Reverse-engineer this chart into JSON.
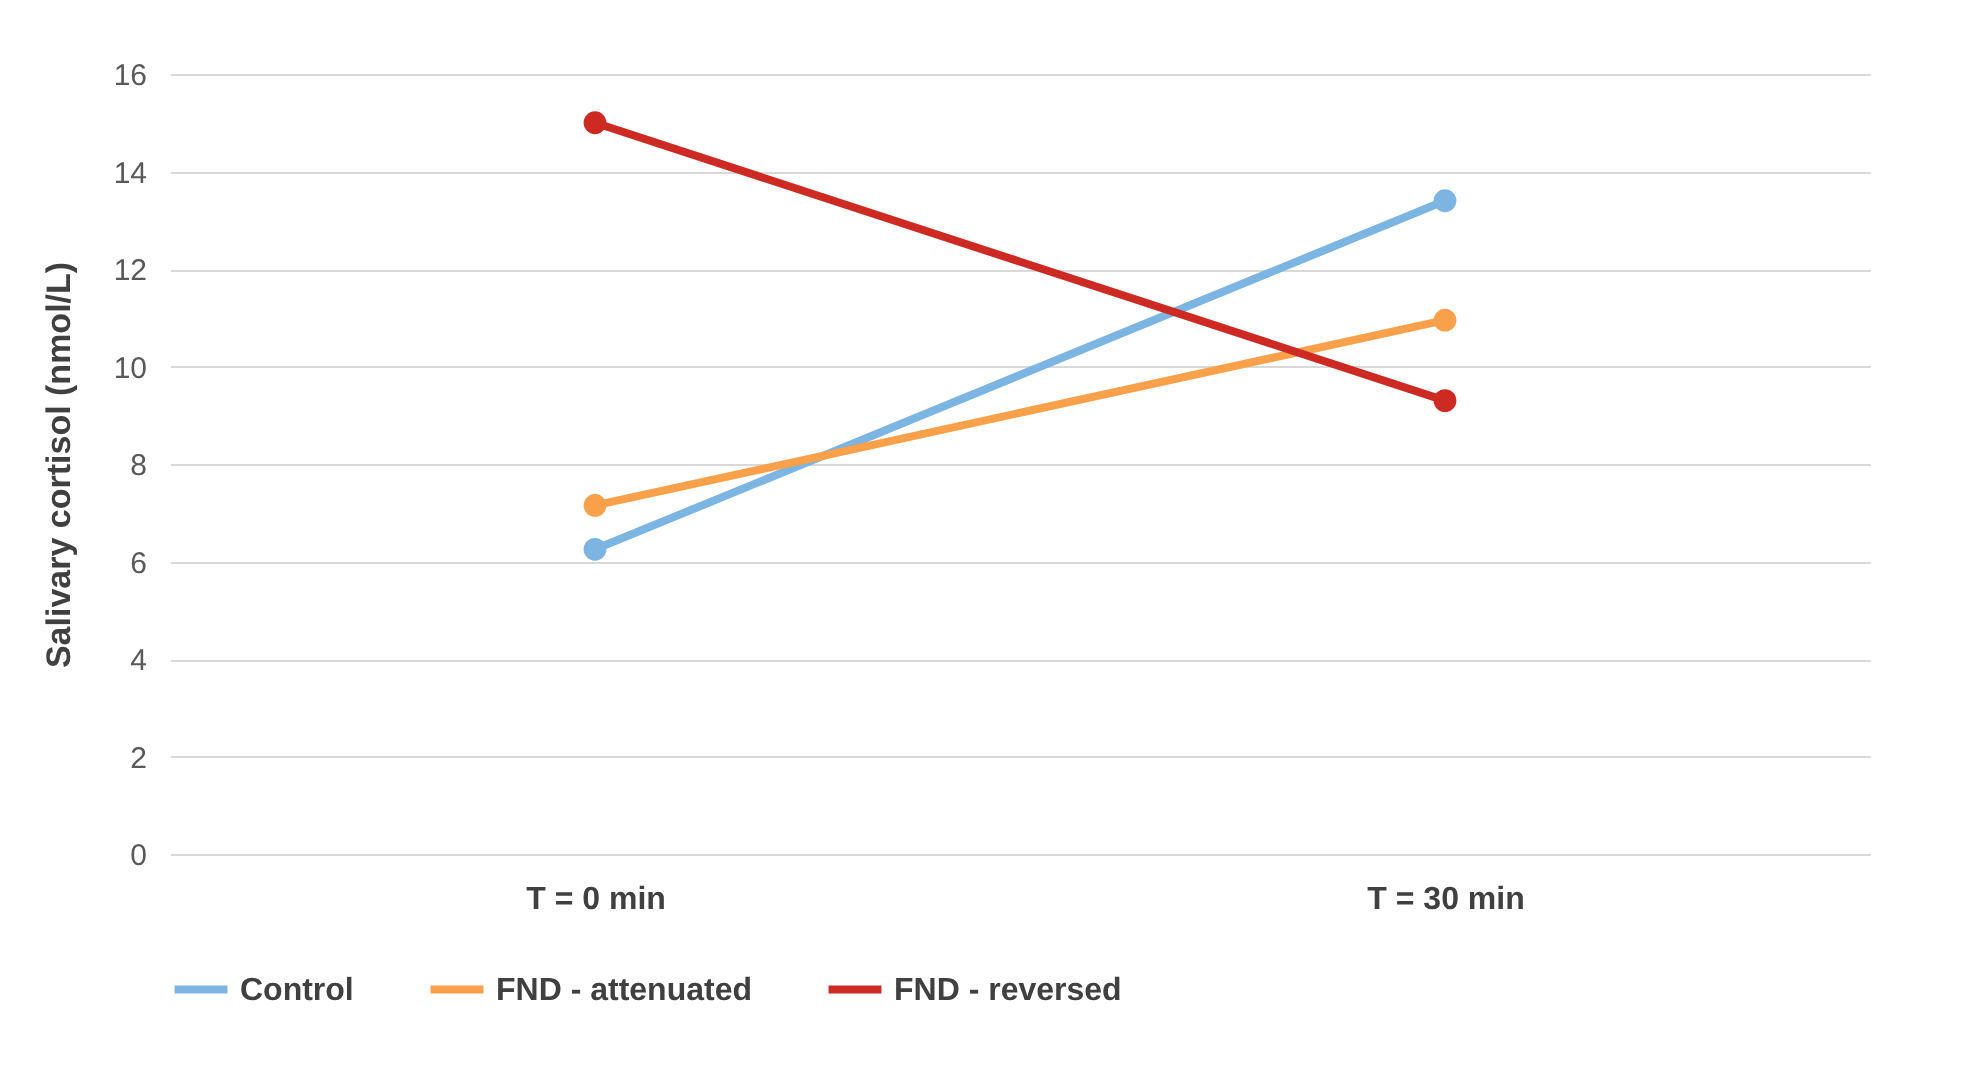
{
  "chart_data": {
    "type": "line",
    "ylabel": "Salivary cortisol (nmol/L)",
    "categories": [
      "T = 0 min",
      "T = 30 min"
    ],
    "series": [
      {
        "name": "Control",
        "color": "#7cb4e2",
        "values": [
          6.25,
          13.4
        ]
      },
      {
        "name": "FND - attenuated",
        "color": "#f9a04b",
        "values": [
          7.15,
          10.95
        ]
      },
      {
        "name": "FND - reversed",
        "color": "#cc2a22",
        "values": [
          15.0,
          9.3
        ]
      }
    ],
    "ylim": [
      0,
      16
    ],
    "yticks": [
      0,
      2,
      4,
      6,
      8,
      10,
      12,
      14,
      16
    ],
    "grid": "y",
    "legend": "bottom",
    "marker": "circle",
    "line_style": "solid"
  }
}
